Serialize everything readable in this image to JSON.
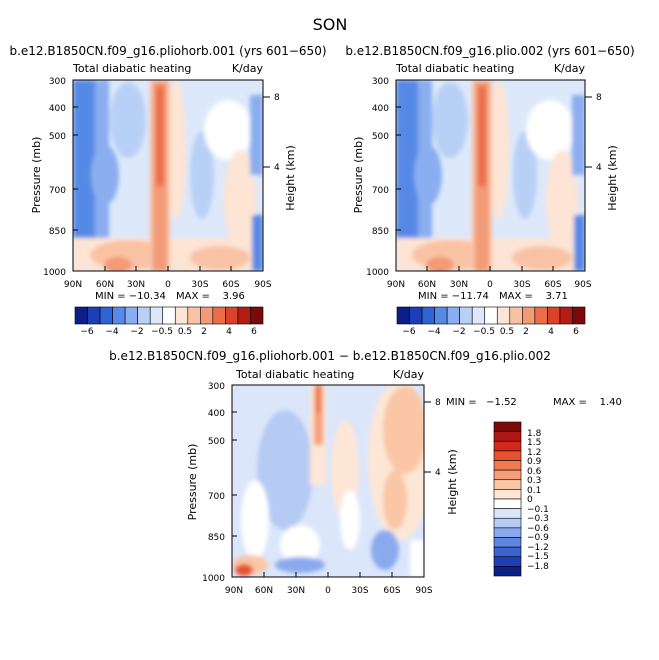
{
  "figure_title": "SON",
  "chart_data": [
    {
      "type": "heatmap",
      "title": "b.e12.B1850CN.f09_g16.pliohorb.001 (yrs 601−650)",
      "subtitle_left": "Total diabatic heating",
      "subtitle_right": "K/day",
      "ylabel": "Pressure (mb)",
      "ylabel_right": "Height (km)",
      "x_ticks": [
        "90N",
        "60N",
        "30N",
        "0",
        "30S",
        "60S",
        "90S"
      ],
      "y_ticks": [
        "300",
        "400",
        "500",
        "700",
        "850",
        "1000"
      ],
      "y_right_ticks": [
        "8",
        "4"
      ],
      "min_label": "MIN = −10.34",
      "max_label": "MAX =    3.96",
      "min": -10.34,
      "max": 3.96,
      "colorbar_labels": [
        "−6",
        "−4",
        "−2",
        "−0.5",
        "0.5",
        "2",
        "4",
        "6"
      ]
    },
    {
      "type": "heatmap",
      "title": "b.e12.B1850CN.f09_g16.plio.002 (yrs 601−650)",
      "subtitle_left": "Total diabatic heating",
      "subtitle_right": "K/day",
      "ylabel": "Pressure (mb)",
      "ylabel_right": "Height (km)",
      "x_ticks": [
        "90N",
        "60N",
        "30N",
        "0",
        "30S",
        "60S",
        "90S"
      ],
      "y_ticks": [
        "300",
        "400",
        "500",
        "700",
        "850",
        "1000"
      ],
      "y_right_ticks": [
        "8",
        "4"
      ],
      "min_label": "MIN = −11.74",
      "max_label": "MAX =    3.71",
      "min": -11.74,
      "max": 3.71,
      "colorbar_labels": [
        "−6",
        "−4",
        "−2",
        "−0.5",
        "0.5",
        "2",
        "4",
        "6"
      ]
    },
    {
      "type": "heatmap",
      "title": "b.e12.B1850CN.f09_g16.pliohorb.001 − b.e12.B1850CN.f09_g16.plio.002",
      "subtitle_left": "Total diabatic heating",
      "subtitle_right": "K/day",
      "ylabel": "Pressure (mb)",
      "ylabel_right": "Height (km)",
      "x_ticks": [
        "90N",
        "60N",
        "30N",
        "0",
        "30S",
        "60S",
        "90S"
      ],
      "y_ticks": [
        "300",
        "400",
        "500",
        "700",
        "850",
        "1000"
      ],
      "y_right_ticks": [
        "8",
        "4"
      ],
      "min_label": "MIN =   −1.52",
      "max_label": "MAX =    1.40",
      "min": -1.52,
      "max": 1.4,
      "colorbar_labels": [
        "1.8",
        "1.5",
        "1.2",
        "0.9",
        "0.6",
        "0.3",
        "0.1",
        "0",
        "−0.1",
        "−0.3",
        "−0.6",
        "−0.9",
        "−1.2",
        "−1.5",
        "−1.8"
      ]
    }
  ],
  "colors": {
    "full_scale": [
      "#0a1f8c",
      "#1c3fb8",
      "#2f63d6",
      "#5789e6",
      "#8aaef0",
      "#b9d0f6",
      "#dde8fb",
      "#ffffff",
      "#fde4d4",
      "#f9c2a4",
      "#f39a76",
      "#ea6e4a",
      "#d8432a",
      "#b51d14",
      "#7d0a0a"
    ],
    "diff_scale": [
      "#7d0a0a",
      "#b01616",
      "#d32a1c",
      "#e8522e",
      "#f27a4f",
      "#f6a07a",
      "#fac6a6",
      "#fde6d6",
      "#ffffff",
      "#dbe6fb",
      "#b5cbf4",
      "#8aaaee",
      "#5f86e2",
      "#3a62d0",
      "#1f40b3",
      "#0b1f88"
    ]
  }
}
